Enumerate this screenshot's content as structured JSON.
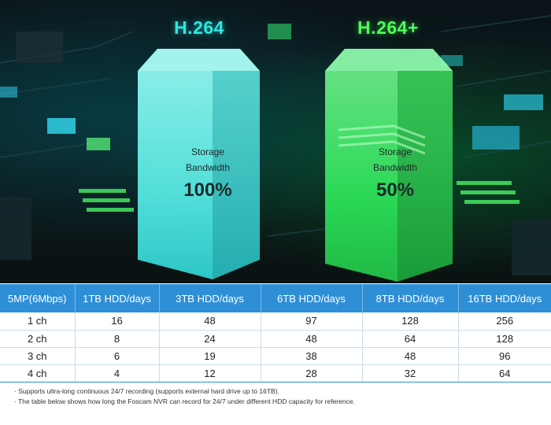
{
  "hero": {
    "h264": {
      "title": "H.264",
      "label_line1": "Storage",
      "label_line2": "Bandwidth",
      "value": "100%",
      "color": "#2fe6e0"
    },
    "h264plus": {
      "title": "H.264+",
      "label_line1": "Storage",
      "label_line2": "Bandwidth",
      "value": "50%",
      "color": "#4dff5a"
    }
  },
  "table": {
    "header_color": "#2f8fd6",
    "headers": [
      "5MP(6Mbps)",
      "1TB HDD/days",
      "3TB HDD/days",
      "6TB HDD/days",
      "8TB HDD/days",
      "16TB HDD/days"
    ],
    "rows": [
      [
        "1 ch",
        "16",
        "48",
        "97",
        "128",
        "256"
      ],
      [
        "2 ch",
        "8",
        "24",
        "48",
        "64",
        "128"
      ],
      [
        "3 ch",
        "6",
        "19",
        "38",
        "48",
        "96"
      ],
      [
        "4 ch",
        "4",
        "12",
        "28",
        "32",
        "64"
      ]
    ]
  },
  "notes": [
    "· Supports ultra-long continuous 24/7 recording (supports external hard drive up to 16TB).",
    "· The table below shows how long the Foscam NVR can record for 24/7 under different HDD capacity for reference."
  ]
}
